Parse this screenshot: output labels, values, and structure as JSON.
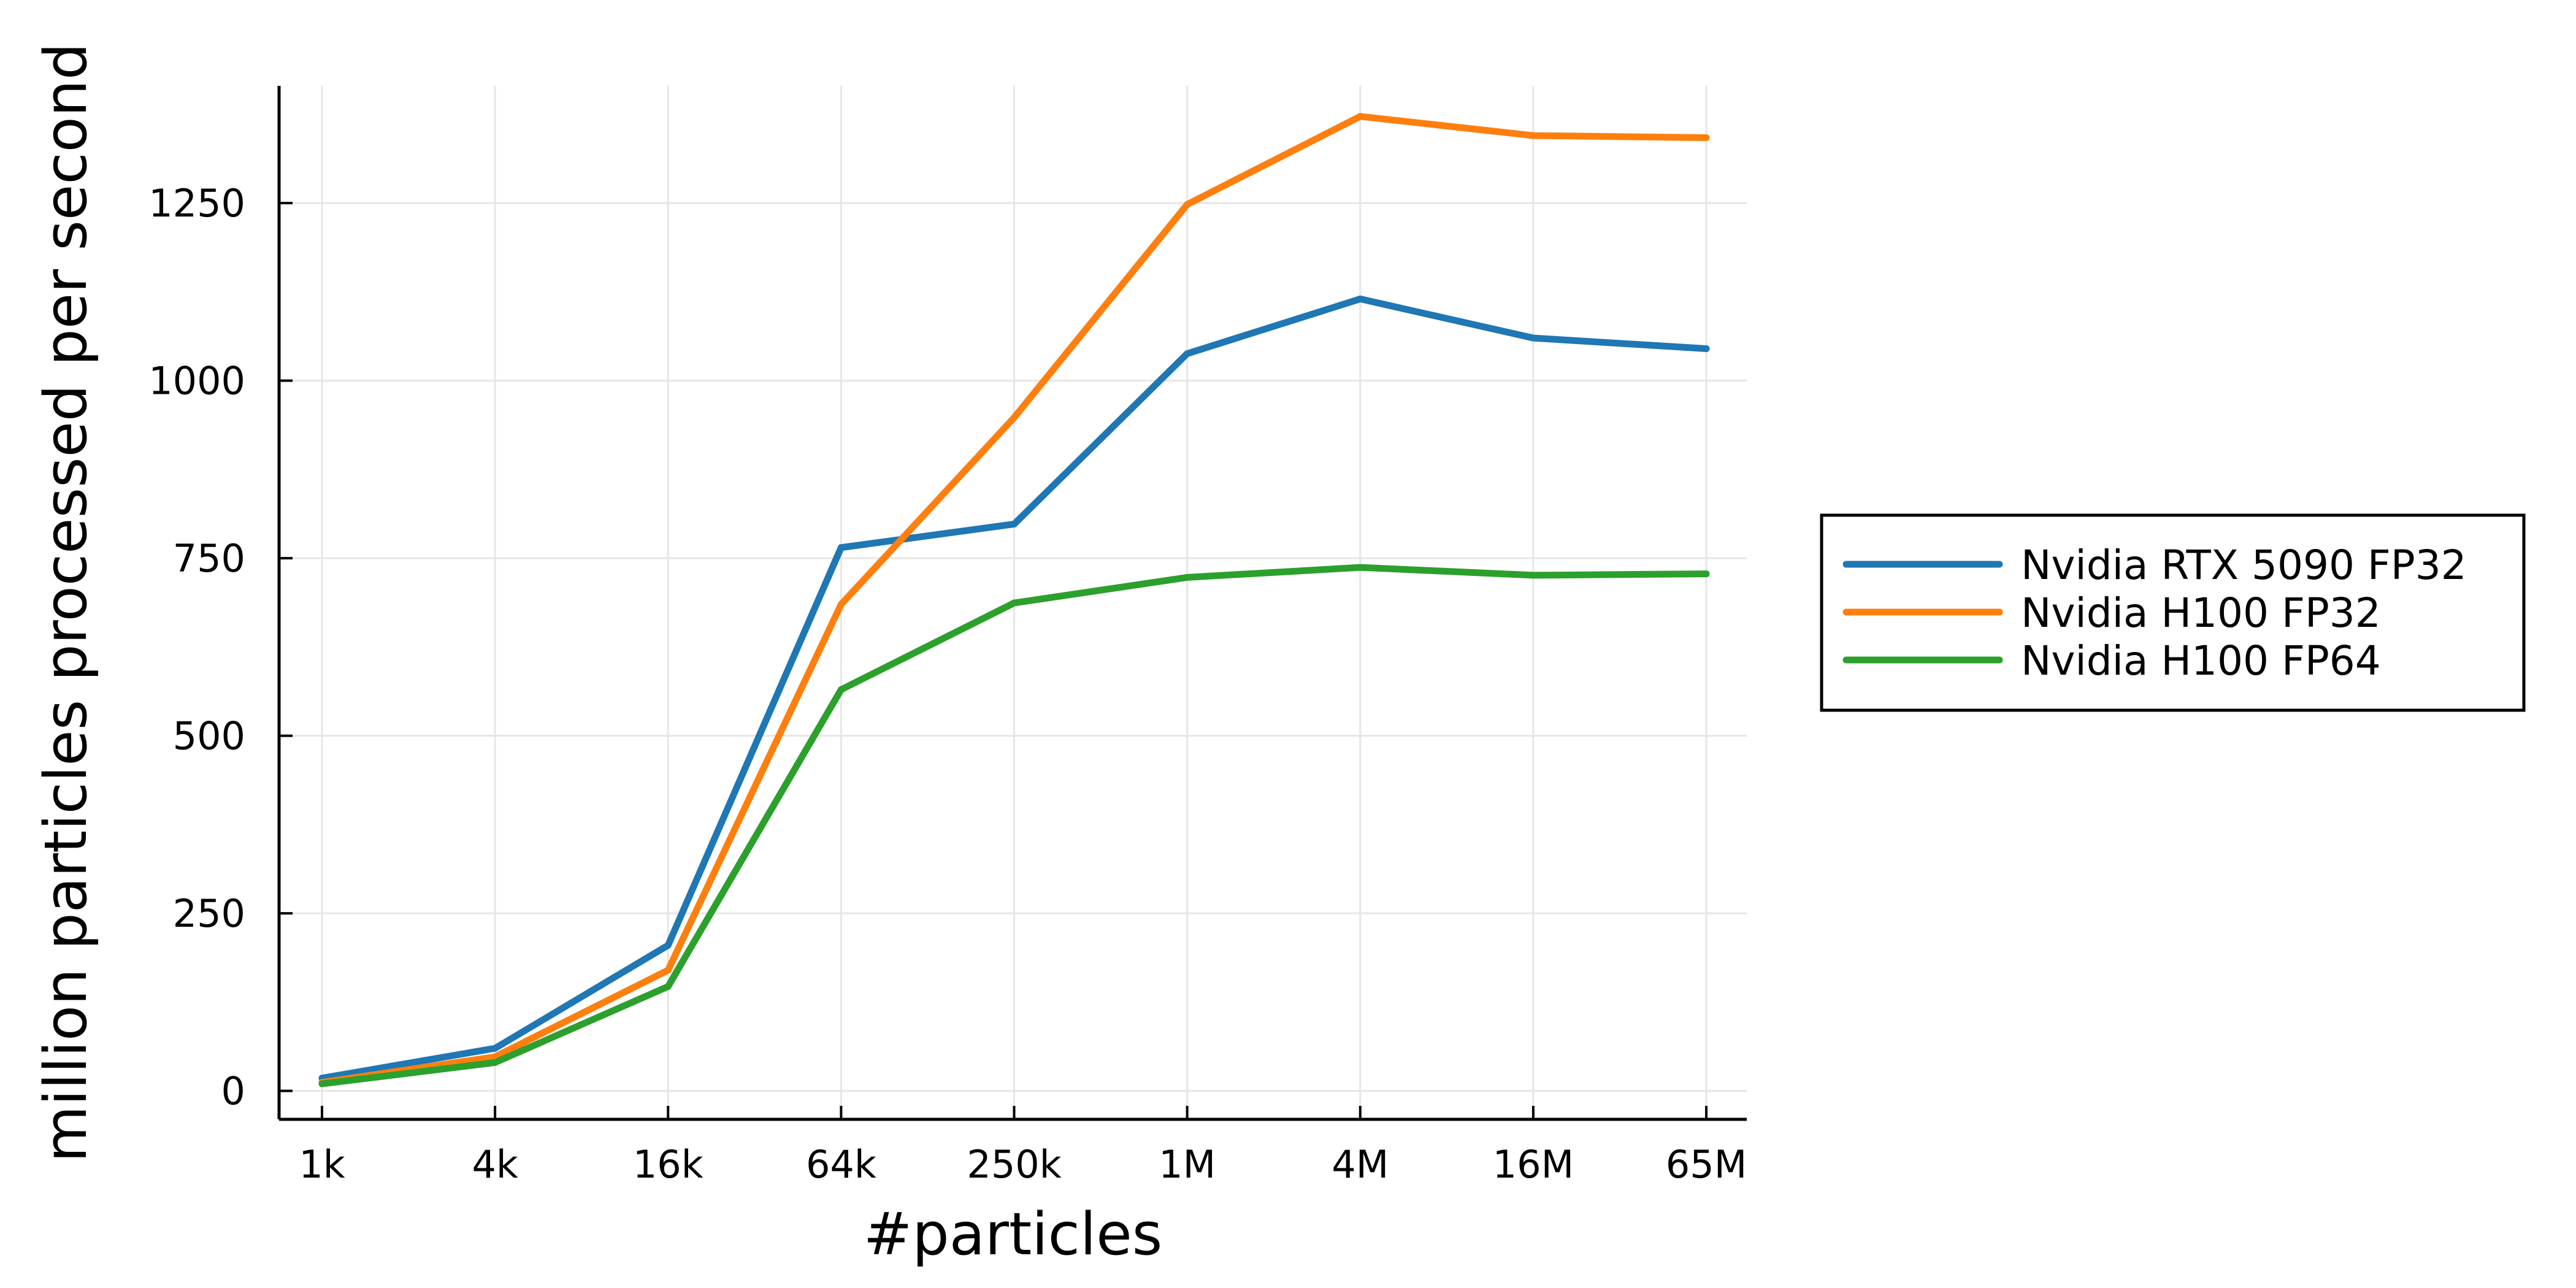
{
  "chart_data": {
    "type": "line",
    "title": "",
    "xlabel": "#particles",
    "ylabel": "million particles processed per second",
    "x_scale": "log",
    "categories": [
      "1k",
      "4k",
      "16k",
      "64k",
      "250k",
      "1M",
      "4M",
      "16M",
      "65M"
    ],
    "y_ticks": [
      "0",
      "250",
      "500",
      "750",
      "1000",
      "1250"
    ],
    "y_tick_values": [
      0,
      250,
      500,
      750,
      1000,
      1250
    ],
    "ylim": [
      -40,
      1415
    ],
    "grid": true,
    "legend_position": "right-center",
    "series": [
      {
        "name": "Nvidia RTX 5090 FP32",
        "color": "#1f77b4",
        "values": [
          18,
          60,
          205,
          765,
          798,
          1038,
          1115,
          1060,
          1045
        ]
      },
      {
        "name": "Nvidia H100 FP32",
        "color": "#ff7f0e",
        "values": [
          12,
          48,
          170,
          685,
          948,
          1248,
          1372,
          1345,
          1342
        ]
      },
      {
        "name": "Nvidia H100 FP64",
        "color": "#2ca02c",
        "values": [
          10,
          40,
          147,
          565,
          687,
          723,
          737,
          726,
          728
        ]
      }
    ]
  }
}
